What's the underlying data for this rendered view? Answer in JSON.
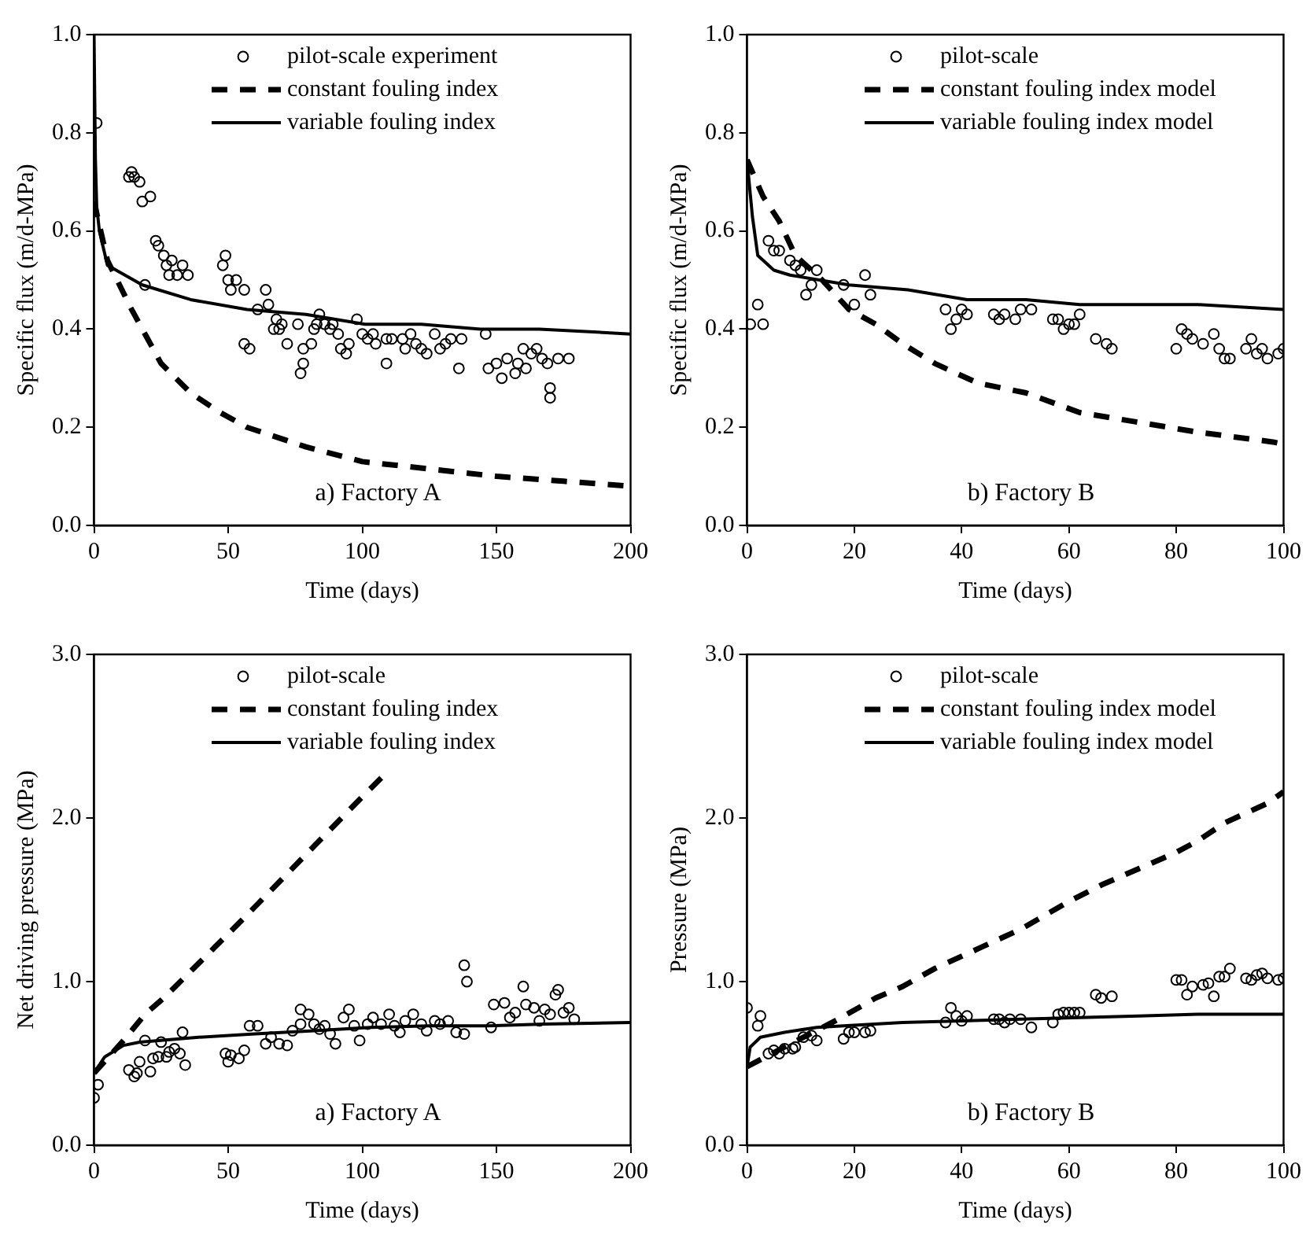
{
  "chart_data": [
    {
      "type": "scatter",
      "xlabel": "Time (days)",
      "ylabel": "Specific flux (m/d-MPa)",
      "xlim": [
        0,
        200
      ],
      "xticks": [
        0,
        50,
        100,
        150,
        200
      ],
      "ylim": [
        0,
        1
      ],
      "yticks": [
        {
          "value": 0,
          "label": "0.0"
        },
        0.2,
        0.4,
        0.6,
        0.8,
        {
          "value": 1,
          "label": "1.0"
        }
      ],
      "grid": false,
      "legend": "top right",
      "annotations": [
        "a) Factory A"
      ],
      "series": [
        {
          "name": "pilot-scale experiment",
          "type": "scatter",
          "marker": "circle",
          "color": "#000000",
          "x": [
            1,
            14,
            13,
            15,
            17,
            18,
            21,
            23,
            24,
            26,
            27,
            29,
            28,
            31,
            33,
            35,
            19,
            49,
            48,
            50,
            53,
            51,
            56,
            56,
            58,
            64,
            61,
            65,
            68,
            70,
            67,
            69,
            72,
            76,
            77,
            78,
            78,
            81,
            82,
            84,
            83,
            86,
            89,
            88,
            91,
            92,
            94,
            95,
            98,
            100,
            102,
            104,
            105,
            109,
            109,
            111,
            115,
            116,
            118,
            120,
            122,
            124,
            127,
            129,
            131,
            133,
            136,
            137,
            146,
            147,
            150,
            152,
            154,
            157,
            158,
            160,
            161,
            163,
            165,
            167,
            169,
            170,
            170,
            173,
            177
          ],
          "values": [
            0.82,
            0.72,
            0.71,
            0.71,
            0.7,
            0.66,
            0.67,
            0.58,
            0.57,
            0.55,
            0.53,
            0.54,
            0.51,
            0.51,
            0.53,
            0.51,
            0.49,
            0.55,
            0.53,
            0.5,
            0.5,
            0.48,
            0.48,
            0.37,
            0.36,
            0.48,
            0.44,
            0.45,
            0.42,
            0.41,
            0.4,
            0.4,
            0.37,
            0.41,
            0.31,
            0.33,
            0.36,
            0.37,
            0.4,
            0.43,
            0.41,
            0.41,
            0.41,
            0.4,
            0.39,
            0.36,
            0.35,
            0.37,
            0.42,
            0.39,
            0.38,
            0.39,
            0.37,
            0.33,
            0.38,
            0.38,
            0.38,
            0.36,
            0.39,
            0.37,
            0.36,
            0.35,
            0.39,
            0.36,
            0.37,
            0.38,
            0.32,
            0.38,
            0.39,
            0.32,
            0.33,
            0.3,
            0.34,
            0.31,
            0.33,
            0.36,
            0.32,
            0.35,
            0.36,
            0.34,
            0.33,
            0.28,
            0.26,
            0.34,
            0.34
          ]
        },
        {
          "name": "constant fouling index",
          "type": "line",
          "line_style": "dashed",
          "color": "#000000",
          "x": [
            0,
            5,
            14,
            25,
            36,
            47,
            57,
            79,
            100,
            125,
            150,
            175,
            200
          ],
          "values": [
            0.66,
            0.54,
            0.44,
            0.33,
            0.27,
            0.23,
            0.2,
            0.16,
            0.13,
            0.115,
            0.1,
            0.09,
            0.08
          ]
        },
        {
          "name": "variable fouling index",
          "type": "line",
          "line_style": "solid",
          "color": "#000000",
          "x": [
            0,
            0.5,
            1,
            2,
            5,
            18,
            36,
            57,
            79,
            101,
            122,
            144,
            166,
            200
          ],
          "values": [
            1.0,
            0.75,
            0.65,
            0.6,
            0.53,
            0.49,
            0.46,
            0.44,
            0.43,
            0.41,
            0.41,
            0.4,
            0.4,
            0.39
          ]
        }
      ]
    },
    {
      "type": "scatter",
      "xlabel": "Time (days)",
      "ylabel": "Specific flux (m/d-MPa)",
      "xlim": [
        0,
        100
      ],
      "xticks": [
        0,
        20,
        40,
        60,
        80,
        100
      ],
      "ylim": [
        0,
        1
      ],
      "yticks": [
        {
          "value": 0,
          "label": "0.0"
        },
        0.2,
        0.4,
        0.6,
        0.8,
        {
          "value": 1,
          "label": "1.0"
        }
      ],
      "grid": false,
      "legend": "top right",
      "annotations": [
        "b) Factory B"
      ],
      "series": [
        {
          "name": "pilot-scale",
          "type": "scatter",
          "marker": "circle",
          "color": "#000000",
          "x": [
            0.6,
            2,
            3,
            4,
            5,
            6,
            8,
            9,
            10,
            11,
            12,
            13,
            18,
            20,
            22,
            23,
            37,
            38,
            39,
            40,
            41,
            46,
            47,
            48,
            50,
            51,
            53,
            57,
            58,
            59,
            60,
            61,
            62,
            65,
            67,
            68,
            80,
            81,
            82,
            83,
            85,
            87,
            88,
            89,
            90,
            93,
            94,
            95,
            96,
            97,
            99,
            100
          ],
          "values": [
            0.41,
            0.45,
            0.41,
            0.58,
            0.56,
            0.56,
            0.54,
            0.53,
            0.52,
            0.47,
            0.49,
            0.52,
            0.49,
            0.45,
            0.51,
            0.47,
            0.44,
            0.4,
            0.42,
            0.44,
            0.43,
            0.43,
            0.42,
            0.43,
            0.42,
            0.44,
            0.44,
            0.42,
            0.42,
            0.4,
            0.41,
            0.41,
            0.43,
            0.38,
            0.37,
            0.36,
            0.36,
            0.4,
            0.39,
            0.38,
            0.37,
            0.39,
            0.36,
            0.34,
            0.34,
            0.36,
            0.38,
            0.35,
            0.36,
            0.34,
            0.35,
            0.36
          ]
        },
        {
          "name": "constant fouling index model",
          "type": "line",
          "line_style": "dashed",
          "color": "#000000",
          "x": [
            0,
            3,
            6,
            9,
            14,
            19,
            24,
            29,
            35,
            43,
            52,
            62,
            73,
            84,
            98,
            100
          ],
          "values": [
            0.745,
            0.67,
            0.62,
            0.55,
            0.5,
            0.44,
            0.41,
            0.37,
            0.33,
            0.29,
            0.27,
            0.23,
            0.21,
            0.19,
            0.17,
            0.165
          ]
        },
        {
          "name": "variable fouling index model",
          "type": "line",
          "line_style": "solid",
          "color": "#000000",
          "x": [
            0,
            1,
            2,
            5,
            8,
            19,
            30,
            41,
            52,
            62,
            73,
            84,
            100
          ],
          "values": [
            0.745,
            0.63,
            0.55,
            0.52,
            0.51,
            0.49,
            0.48,
            0.46,
            0.46,
            0.45,
            0.45,
            0.45,
            0.44
          ]
        }
      ]
    },
    {
      "type": "scatter",
      "xlabel": "Time (days)",
      "ylabel": "Net driving pressure (MPa)",
      "xlim": [
        0,
        200
      ],
      "xticks": [
        0,
        50,
        100,
        150,
        200
      ],
      "ylim": [
        0,
        3
      ],
      "yticks": [
        {
          "value": 0,
          "label": "0.0"
        },
        {
          "value": 1,
          "label": "1.0"
        },
        {
          "value": 2,
          "label": "2.0"
        },
        {
          "value": 3,
          "label": "3.0"
        }
      ],
      "grid": false,
      "legend": "top right",
      "annotations": [
        "a) Factory A"
      ],
      "series": [
        {
          "name": "pilot-scale",
          "type": "scatter",
          "marker": "circle",
          "color": "#000000",
          "x": [
            0,
            1.5,
            13,
            15,
            16,
            17,
            19,
            21,
            22,
            24,
            25,
            27,
            28,
            30,
            32,
            33,
            34,
            49,
            50,
            51,
            54,
            56,
            58,
            61,
            64,
            66,
            69,
            72,
            74,
            77,
            77,
            80,
            82,
            84,
            86,
            88,
            90,
            93,
            95,
            97,
            99,
            102,
            104,
            107,
            110,
            112,
            114,
            116,
            119,
            122,
            124,
            127,
            129,
            132,
            135,
            138,
            138,
            139,
            148,
            149,
            153,
            155,
            157,
            160,
            161,
            164,
            166,
            168,
            170,
            172,
            173,
            175,
            177,
            179
          ],
          "values": [
            0.29,
            0.37,
            0.46,
            0.42,
            0.44,
            0.51,
            0.64,
            0.45,
            0.53,
            0.54,
            0.63,
            0.54,
            0.57,
            0.59,
            0.56,
            0.69,
            0.49,
            0.56,
            0.51,
            0.55,
            0.53,
            0.58,
            0.73,
            0.73,
            0.62,
            0.66,
            0.62,
            0.61,
            0.7,
            0.74,
            0.83,
            0.8,
            0.74,
            0.71,
            0.73,
            0.68,
            0.62,
            0.78,
            0.83,
            0.73,
            0.64,
            0.74,
            0.78,
            0.74,
            0.8,
            0.73,
            0.69,
            0.76,
            0.8,
            0.74,
            0.7,
            0.76,
            0.74,
            0.76,
            0.69,
            0.68,
            1.1,
            1.0,
            0.72,
            0.86,
            0.87,
            0.78,
            0.81,
            0.97,
            0.86,
            0.84,
            0.76,
            0.83,
            0.8,
            0.92,
            0.95,
            0.81,
            0.84,
            0.77
          ]
        },
        {
          "name": "constant fouling index",
          "type": "line",
          "line_style": "dashed",
          "color": "#000000",
          "x": [
            0,
            11,
            19,
            26,
            34,
            45,
            56,
            78,
            100,
            108
          ],
          "values": [
            0.44,
            0.64,
            0.8,
            0.9,
            1.03,
            1.21,
            1.39,
            1.76,
            2.13,
            2.26
          ]
        },
        {
          "name": "variable fouling index",
          "type": "line",
          "line_style": "solid",
          "color": "#000000",
          "x": [
            0,
            4,
            11,
            17,
            39,
            60,
            82,
            103,
            125,
            147,
            168,
            200
          ],
          "values": [
            0.44,
            0.54,
            0.61,
            0.63,
            0.66,
            0.68,
            0.7,
            0.72,
            0.73,
            0.73,
            0.74,
            0.75
          ]
        }
      ]
    },
    {
      "type": "scatter",
      "xlabel": "Time (days)",
      "ylabel": "Pressure (MPa)",
      "xlim": [
        0,
        100
      ],
      "xticks": [
        0,
        20,
        40,
        60,
        80,
        100
      ],
      "ylim": [
        0,
        3
      ],
      "yticks": [
        {
          "value": 0,
          "label": "0.0"
        },
        {
          "value": 1,
          "label": "1.0"
        },
        {
          "value": 2,
          "label": "2.0"
        },
        {
          "value": 3,
          "label": "3.0"
        }
      ],
      "grid": false,
      "legend": "top right",
      "annotations": [
        "b) Factory B"
      ],
      "series": [
        {
          "name": "pilot-scale",
          "type": "scatter",
          "marker": "circle",
          "color": "#000000",
          "x": [
            0,
            2,
            2.5,
            4,
            5,
            6,
            7,
            8.5,
            9,
            10.5,
            12,
            13,
            18,
            19,
            20,
            22,
            23,
            37,
            38,
            39,
            40,
            41,
            46,
            47,
            48,
            49,
            51,
            53,
            57,
            58,
            59,
            60,
            61,
            62,
            65,
            66,
            68,
            80,
            81,
            82,
            83,
            85,
            86,
            87,
            88,
            89,
            90,
            93,
            94,
            95,
            96,
            97,
            99,
            100
          ],
          "values": [
            0.84,
            0.73,
            0.79,
            0.56,
            0.58,
            0.56,
            0.59,
            0.59,
            0.6,
            0.66,
            0.67,
            0.64,
            0.65,
            0.69,
            0.69,
            0.69,
            0.7,
            0.75,
            0.84,
            0.79,
            0.76,
            0.79,
            0.77,
            0.77,
            0.75,
            0.77,
            0.77,
            0.72,
            0.75,
            0.8,
            0.81,
            0.81,
            0.81,
            0.81,
            0.92,
            0.9,
            0.91,
            1.01,
            1.01,
            0.92,
            0.97,
            0.98,
            0.99,
            0.91,
            1.03,
            1.03,
            1.08,
            1.02,
            1.01,
            1.04,
            1.05,
            1.02,
            1.01,
            1.02
          ]
        },
        {
          "name": "constant fouling index model",
          "type": "line",
          "line_style": "dashed",
          "color": "#000000",
          "x": [
            0,
            7,
            17,
            24,
            29,
            35,
            43,
            51,
            60,
            66,
            73,
            80,
            84,
            89,
            97,
            100
          ],
          "values": [
            0.48,
            0.6,
            0.77,
            0.9,
            0.97,
            1.08,
            1.2,
            1.32,
            1.49,
            1.59,
            1.69,
            1.79,
            1.86,
            1.97,
            2.09,
            2.16
          ]
        },
        {
          "name": "variable fouling index model",
          "type": "line",
          "line_style": "solid",
          "color": "#000000",
          "x": [
            0,
            0.6,
            2.5,
            7,
            13,
            18,
            29,
            40,
            51,
            62,
            73,
            84,
            100
          ],
          "values": [
            0.48,
            0.6,
            0.66,
            0.69,
            0.72,
            0.73,
            0.75,
            0.76,
            0.77,
            0.78,
            0.79,
            0.8,
            0.8
          ]
        }
      ]
    }
  ]
}
